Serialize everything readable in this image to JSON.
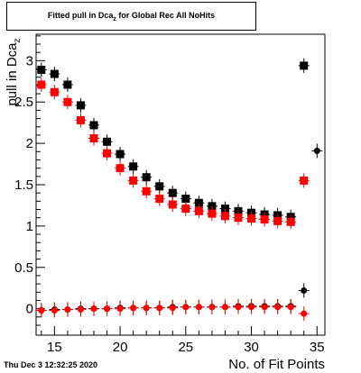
{
  "title": {
    "main": "Fitted pull in Dca",
    "sub": "z",
    "rest": " for Global Rec All NoHits"
  },
  "timestamp": "Thu Dec  3 12:32:25 2020",
  "chart_data": {
    "type": "scatter",
    "title": "Fitted pull in Dcaz for Global Rec All NoHits",
    "xlabel": "No. of Fit Points",
    "ylabel": "pull in Dcaz",
    "xlim": [
      13.6,
      35.6
    ],
    "ylim": [
      -0.32,
      3.32
    ],
    "xticks": [
      15,
      20,
      25,
      30,
      35
    ],
    "yticks": [
      0,
      0.5,
      1,
      1.5,
      2,
      2.5,
      3
    ],
    "grid": false,
    "series": [
      {
        "role": "sigma_black",
        "color": "#000000",
        "marker": "square",
        "x": [
          14,
          15,
          16,
          17,
          18,
          19,
          20,
          21,
          22,
          23,
          24,
          25,
          26,
          27,
          28,
          29,
          30,
          31,
          32,
          33,
          34
        ],
        "y": [
          2.89,
          2.84,
          2.71,
          2.46,
          2.22,
          2.02,
          1.87,
          1.72,
          1.59,
          1.48,
          1.4,
          1.33,
          1.28,
          1.24,
          1.21,
          1.18,
          1.16,
          1.14,
          1.13,
          1.11,
          2.94
        ]
      },
      {
        "role": "sigma_red",
        "color": "#ff0000",
        "marker": "square",
        "x": [
          14,
          15,
          16,
          17,
          18,
          19,
          20,
          21,
          22,
          23,
          24,
          25,
          26,
          27,
          28,
          29,
          30,
          31,
          32,
          33,
          34
        ],
        "y": [
          2.71,
          2.62,
          2.5,
          2.28,
          2.06,
          1.88,
          1.7,
          1.55,
          1.42,
          1.33,
          1.26,
          1.21,
          1.18,
          1.15,
          1.12,
          1.1,
          1.09,
          1.08,
          1.06,
          1.05,
          1.55
        ]
      },
      {
        "role": "mean_black",
        "color": "#000000",
        "marker": "circle",
        "x": [
          14,
          15,
          16,
          17,
          18,
          19,
          20,
          21,
          22,
          23,
          24,
          25,
          26,
          27,
          28,
          29,
          30,
          31,
          32,
          33,
          34,
          35
        ],
        "y": [
          -0.02,
          -0.01,
          -0.01,
          0.0,
          0.0,
          0.0,
          0.01,
          0.01,
          0.01,
          0.01,
          0.02,
          0.02,
          0.02,
          0.02,
          0.02,
          0.03,
          0.03,
          0.03,
          0.03,
          0.03,
          0.22,
          1.91
        ]
      },
      {
        "role": "mean_red",
        "color": "#ff0000",
        "marker": "circle",
        "x": [
          14,
          15,
          16,
          17,
          18,
          19,
          20,
          21,
          22,
          23,
          24,
          25,
          26,
          27,
          28,
          29,
          30,
          31,
          32,
          33,
          34
        ],
        "y": [
          -0.02,
          -0.02,
          -0.01,
          -0.01,
          0.0,
          0.0,
          0.0,
          0.01,
          0.01,
          0.01,
          0.01,
          0.02,
          0.02,
          0.02,
          0.02,
          0.02,
          0.02,
          0.02,
          0.02,
          0.02,
          -0.06
        ]
      }
    ]
  }
}
